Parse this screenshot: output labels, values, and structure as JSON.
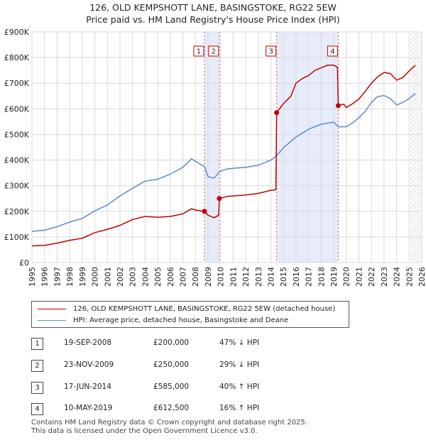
{
  "title_line1": "126, OLD KEMPSHOTT LANE, BASINGSTOKE, RG22 5EW",
  "title_line2": "Price paid vs. HM Land Registry's House Price Index (HPI)",
  "chart_data": {
    "type": "line",
    "title": "126, OLD KEMPSHOTT LANE, BASINGSTOKE, RG22 5EW — Price paid vs. HM Land Registry's House Price Index (HPI)",
    "xlabel": "",
    "ylabel": "",
    "xlim": [
      1995,
      2026
    ],
    "ylim": [
      0,
      900000
    ],
    "y_ticks": [
      {
        "value": 0,
        "label": "£0"
      },
      {
        "value": 100000,
        "label": "£100K"
      },
      {
        "value": 200000,
        "label": "£200K"
      },
      {
        "value": 300000,
        "label": "£300K"
      },
      {
        "value": 400000,
        "label": "£400K"
      },
      {
        "value": 500000,
        "label": "£500K"
      },
      {
        "value": 600000,
        "label": "£600K"
      },
      {
        "value": 700000,
        "label": "£700K"
      },
      {
        "value": 800000,
        "label": "£800K"
      },
      {
        "value": 900000,
        "label": "£900K"
      }
    ],
    "x_ticks": [
      {
        "value": 1995,
        "label": "1995"
      },
      {
        "value": 1996,
        "label": "1996"
      },
      {
        "value": 1997,
        "label": "1997"
      },
      {
        "value": 1998,
        "label": "1998"
      },
      {
        "value": 1999,
        "label": "1999"
      },
      {
        "value": 2000,
        "label": "2000"
      },
      {
        "value": 2001,
        "label": "2001"
      },
      {
        "value": 2002,
        "label": "2002"
      },
      {
        "value": 2003,
        "label": "2003"
      },
      {
        "value": 2004,
        "label": "2004"
      },
      {
        "value": 2005,
        "label": "2005"
      },
      {
        "value": 2006,
        "label": "2006"
      },
      {
        "value": 2007,
        "label": "2007"
      },
      {
        "value": 2008,
        "label": "2008"
      },
      {
        "value": 2009,
        "label": "2009"
      },
      {
        "value": 2010,
        "label": "2010"
      },
      {
        "value": 2011,
        "label": "2011"
      },
      {
        "value": 2012,
        "label": "2012"
      },
      {
        "value": 2013,
        "label": "2013"
      },
      {
        "value": 2014,
        "label": "2014"
      },
      {
        "value": 2015,
        "label": "2015"
      },
      {
        "value": 2016,
        "label": "2016"
      },
      {
        "value": 2017,
        "label": "2017"
      },
      {
        "value": 2018,
        "label": "2018"
      },
      {
        "value": 2019,
        "label": "2019"
      },
      {
        "value": 2020,
        "label": "2020"
      },
      {
        "value": 2021,
        "label": "2021"
      },
      {
        "value": 2022,
        "label": "2022"
      },
      {
        "value": 2023,
        "label": "2023"
      },
      {
        "value": 2024,
        "label": "2024"
      },
      {
        "value": 2025,
        "label": "2025"
      },
      {
        "value": 2026,
        "label": "2026"
      }
    ],
    "grid": true,
    "shaded_spans": [
      [
        2008.72,
        2009.9
      ],
      [
        2014.46,
        2019.36
      ]
    ],
    "future_hatch_from": 2025.1,
    "series": [
      {
        "name": "126, OLD KEMPSHOTT LANE, BASINGSTOKE, RG22 5EW (detached house)",
        "color": "#c00000",
        "points": [
          [
            1995.0,
            65000
          ],
          [
            1996.0,
            67000
          ],
          [
            1997.0,
            76000
          ],
          [
            1998.0,
            87000
          ],
          [
            1999.0,
            95000
          ],
          [
            2000.0,
            117000
          ],
          [
            2001.0,
            130000
          ],
          [
            2002.0,
            145000
          ],
          [
            2003.0,
            168000
          ],
          [
            2004.0,
            180000
          ],
          [
            2005.0,
            177000
          ],
          [
            2006.0,
            180000
          ],
          [
            2007.0,
            190000
          ],
          [
            2007.7,
            210000
          ],
          [
            2008.0,
            205000
          ],
          [
            2008.72,
            200000
          ],
          [
            2009.0,
            185000
          ],
          [
            2009.5,
            175000
          ],
          [
            2009.85,
            185000
          ],
          [
            2009.9,
            250000
          ],
          [
            2010.5,
            258000
          ],
          [
            2011.0,
            260000
          ],
          [
            2012.0,
            264000
          ],
          [
            2013.0,
            270000
          ],
          [
            2014.0,
            282000
          ],
          [
            2014.4,
            284000
          ],
          [
            2014.46,
            585000
          ],
          [
            2015.0,
            620000
          ],
          [
            2015.6,
            650000
          ],
          [
            2016.0,
            700000
          ],
          [
            2016.5,
            718000
          ],
          [
            2017.0,
            730000
          ],
          [
            2017.5,
            750000
          ],
          [
            2018.0,
            760000
          ],
          [
            2018.5,
            770000
          ],
          [
            2019.0,
            770000
          ],
          [
            2019.3,
            762000
          ],
          [
            2019.36,
            612500
          ],
          [
            2019.8,
            618000
          ],
          [
            2020.0,
            605000
          ],
          [
            2020.5,
            620000
          ],
          [
            2021.0,
            638000
          ],
          [
            2021.5,
            668000
          ],
          [
            2022.0,
            700000
          ],
          [
            2022.5,
            725000
          ],
          [
            2023.0,
            742000
          ],
          [
            2023.5,
            738000
          ],
          [
            2024.0,
            712000
          ],
          [
            2024.5,
            722000
          ],
          [
            2025.0,
            748000
          ],
          [
            2025.5,
            770000
          ]
        ]
      },
      {
        "name": "HPI: Average price, detached house, Basingstoke and Deane",
        "color": "#5b8cc8",
        "points": [
          [
            1995.0,
            122000
          ],
          [
            1996.0,
            126000
          ],
          [
            1997.0,
            140000
          ],
          [
            1998.0,
            158000
          ],
          [
            1999.0,
            172000
          ],
          [
            2000.0,
            202000
          ],
          [
            2001.0,
            225000
          ],
          [
            2002.0,
            260000
          ],
          [
            2003.0,
            290000
          ],
          [
            2004.0,
            318000
          ],
          [
            2005.0,
            325000
          ],
          [
            2006.0,
            345000
          ],
          [
            2007.0,
            372000
          ],
          [
            2007.7,
            405000
          ],
          [
            2008.0,
            395000
          ],
          [
            2008.72,
            375000
          ],
          [
            2009.0,
            335000
          ],
          [
            2009.5,
            330000
          ],
          [
            2009.9,
            355000
          ],
          [
            2010.5,
            365000
          ],
          [
            2011.0,
            368000
          ],
          [
            2012.0,
            372000
          ],
          [
            2013.0,
            380000
          ],
          [
            2014.0,
            400000
          ],
          [
            2014.46,
            418000
          ],
          [
            2015.0,
            448000
          ],
          [
            2016.0,
            490000
          ],
          [
            2017.0,
            520000
          ],
          [
            2018.0,
            540000
          ],
          [
            2019.0,
            548000
          ],
          [
            2019.36,
            530000
          ],
          [
            2020.0,
            530000
          ],
          [
            2020.5,
            545000
          ],
          [
            2021.0,
            565000
          ],
          [
            2021.5,
            590000
          ],
          [
            2022.0,
            625000
          ],
          [
            2022.5,
            648000
          ],
          [
            2023.0,
            652000
          ],
          [
            2023.5,
            640000
          ],
          [
            2024.0,
            615000
          ],
          [
            2024.5,
            625000
          ],
          [
            2025.0,
            640000
          ],
          [
            2025.5,
            660000
          ]
        ]
      }
    ],
    "transactions": [
      {
        "id": "1",
        "date": "19-SEP-2008",
        "x": 2008.72,
        "price": 200000,
        "price_label": "£200,000",
        "hpi": "47% ↓ HPI"
      },
      {
        "id": "2",
        "date": "23-NOV-2009",
        "x": 2009.9,
        "price": 250000,
        "price_label": "£250,000",
        "hpi": "29% ↓ HPI"
      },
      {
        "id": "3",
        "date": "17-JUN-2014",
        "x": 2014.46,
        "price": 585000,
        "price_label": "£585,000",
        "hpi": "40% ↑ HPI"
      },
      {
        "id": "4",
        "date": "10-MAY-2019",
        "x": 2019.36,
        "price": 612500,
        "price_label": "£612,500",
        "hpi": "16% ↑ HPI"
      }
    ]
  },
  "legend": {
    "red_label": "126, OLD KEMPSHOTT LANE, BASINGSTOKE, RG22 5EW (detached house)",
    "blue_label": "HPI: Average price, detached house, Basingstoke and Deane"
  },
  "footer": {
    "line1": "Contains HM Land Registry data © Crown copyright and database right 2025.",
    "line2": "This data is licensed under the Open Government Licence v3.0."
  }
}
